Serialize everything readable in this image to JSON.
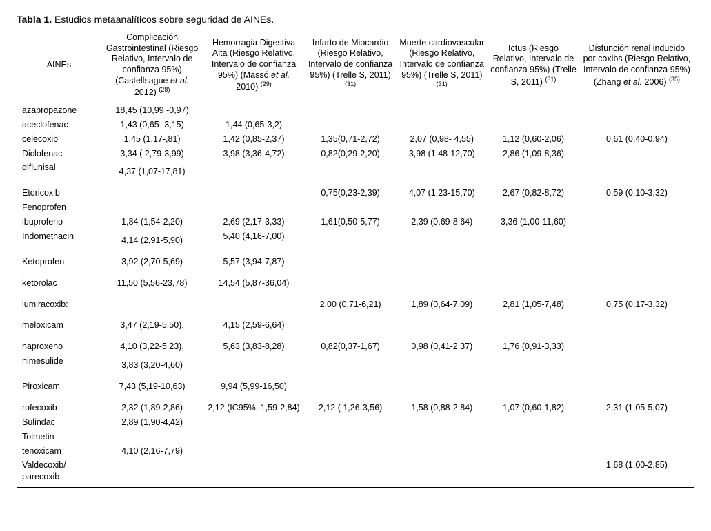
{
  "title_prefix": "Tabla 1.",
  "title_rest": " Estudios metaanalíticos sobre seguridad de AINEs.",
  "col_widths_pct": [
    12.5,
    15,
    15,
    13.5,
    13.5,
    13.5,
    17
  ],
  "columns": [
    "AINEs",
    "Complicación Gastrointestinal (Riesgo Relativo, Intervalo de confianza 95%) (Castellsague <em>et al.</em> 2012) <sup>(28)</sup>",
    "Hemorragia Digestiva Alta (Riesgo Relativo, Intervalo de confianza 95%) (Massó <em>et al.</em> 2010) <sup>(29)</sup>",
    "Infarto de Miocardio (Riesgo Relativo, Intervalo de confianza 95%) (Trelle S, 2011) <sup>(31)</sup>",
    "Muerte cardiovascular (Riesgo Relativo, Intervalo de confianza 95%) (Trelle S, 2011) <sup>(31)</sup>",
    "Ictus (Riesgo Relativo, Intervalo de confianza 95%) (Trelle S, 2011) <sup>(31)</sup>",
    "Disfunción renal inducido por coxibs (Riesgo Relativo, Intervalo de confianza 95%) (Zhang <em>et al.</em> 2006) <sup>(35)</sup>"
  ],
  "rows": [
    {
      "name": "azapropazone",
      "c1": "18,45 (10,99 -0,97)",
      "c2": "",
      "c3": "",
      "c4": "",
      "c5": "",
      "c6": ""
    },
    {
      "name": "aceclofenac",
      "c1": "1,43 (0,65 -3,15)",
      "c2": "1,44 (0,65-3,2)",
      "c3": "",
      "c4": "",
      "c5": "",
      "c6": ""
    },
    {
      "name": "celecoxib",
      "c1": "1,45 (1,17-,81)",
      "c2": "1,42 (0,85-2,37)",
      "c3": "1,35(0,71-2,72)",
      "c4": "2,07 (0,98- 4,55)",
      "c5": "1,12 (0,60-2,06)",
      "c6": "0,61 (0,40-0,94)"
    },
    {
      "name": "Diclofenac",
      "c1": "3,34 ( 2,79-3,99)",
      "c2": "3,98 (3,36-4,72)",
      "c3": "0,82(0,29-2,20)",
      "c4": "3,98 (1,48-12,70)",
      "c5": "2,86 (1,09-8,36)",
      "c6": ""
    },
    {
      "name": "diflunisal",
      "c1": "4,37 (1,07-17,81)",
      "c2": "",
      "c3": "",
      "c4": "",
      "c5": "",
      "c6": "",
      "pad": true
    },
    {
      "spacer": true
    },
    {
      "name": "Etoricoxib",
      "c1": "",
      "c2": "",
      "c3": "0,75(0,23-2,39)",
      "c4": "4,07 (1,23-15,70)",
      "c5": "2,67 (0,82-8,72)",
      "c6": "0,59 (0,10-3,32)"
    },
    {
      "name": "Fenoprofen",
      "c1": "",
      "c2": "",
      "c3": "",
      "c4": "",
      "c5": "",
      "c6": ""
    },
    {
      "name": "ibuprofeno",
      "c1": "1,84 (1,54-2,20)",
      "c2": "2,69 (2,17-3,33)",
      "c3": "1,61(0,50-5,77)",
      "c4": "2,39 (0,69-8,64)",
      "c5": "3,36 (1,00-11,60)",
      "c6": ""
    },
    {
      "name": "Indomethacin",
      "c1": "4,14 (2,91-5,90)",
      "c2": "5,40 (4,16-7,00)",
      "c3": "",
      "c4": "",
      "c5": "",
      "c6": "",
      "pad": true
    },
    {
      "spacer": true
    },
    {
      "name": "Ketoprofen",
      "c1": "3,92 (2,70-5,69)",
      "c2": "5,57 (3,94-7,87)",
      "c3": "",
      "c4": "",
      "c5": "",
      "c6": ""
    },
    {
      "spacer": true
    },
    {
      "name": "ketorolac",
      "c1": "11,50 (5,56-23,78)",
      "c2": "14,54 (5,87-36,04)",
      "c3": "",
      "c4": "",
      "c5": "",
      "c6": ""
    },
    {
      "spacer": true
    },
    {
      "name": "lumiracoxib:",
      "c1": "",
      "c2": "",
      "c3": "2,00 (0,71-6,21)",
      "c4": "1,89 (0,64-7,09)",
      "c5": "2,81 (1,05-7,48)",
      "c6": "0,75 (0,17-3,32)"
    },
    {
      "spacer": true
    },
    {
      "name": "meloxicam",
      "c1": "3,47 (2,19-5,50),",
      "c2": "4,15 (2,59-6,64)",
      "c3": "",
      "c4": "",
      "c5": "",
      "c6": ""
    },
    {
      "spacer": true
    },
    {
      "name": "naproxeno",
      "c1": "4,10 (3,22-5,23),",
      "c2": "5,63 (3,83-8,28)",
      "c3": "0,82(0,37-1,67)",
      "c4": "0,98 (0,41-2,37)",
      "c5": "1,76 (0,91-3,33)",
      "c6": ""
    },
    {
      "name": "nimesulide",
      "c1": "3,83 (3,20-4,60)",
      "c2": "",
      "c3": "",
      "c4": "",
      "c5": "",
      "c6": "",
      "pad": true
    },
    {
      "spacer": true
    },
    {
      "name": "Piroxicam",
      "c1": "7,43 (5,19-10,63)",
      "c2": "9,94 (5,99-16,50)",
      "c3": "",
      "c4": "",
      "c5": "",
      "c6": ""
    },
    {
      "spacer": true
    },
    {
      "name": "rofecoxib",
      "c1": "2,32 (1,89-2,86)",
      "c2": "2,12 (IC95%, 1,59-2,84)",
      "c3": "2,12 ( 1,26-3,56)",
      "c4": "1,58 (0,88-2,84)",
      "c5": "1,07 (0,60-1,82)",
      "c6": "2,31 (1,05-5,07)"
    },
    {
      "name": "Sulindac",
      "c1": "2,89 (1,90-4,42)",
      "c2": "",
      "c3": "",
      "c4": "",
      "c5": "",
      "c6": ""
    },
    {
      "name": "Tolmetin",
      "c1": "",
      "c2": "",
      "c3": "",
      "c4": "",
      "c5": "",
      "c6": ""
    },
    {
      "name": "tenoxicam",
      "c1": "4,10 (2,16-7,79)",
      "c2": "",
      "c3": "",
      "c4": "",
      "c5": "",
      "c6": ""
    },
    {
      "name": "Valdecoxib/ parecoxib",
      "c1": "",
      "c2": "",
      "c3": "",
      "c4": "",
      "c5": "",
      "c6": "1,68 (1,00-2,85)"
    }
  ]
}
